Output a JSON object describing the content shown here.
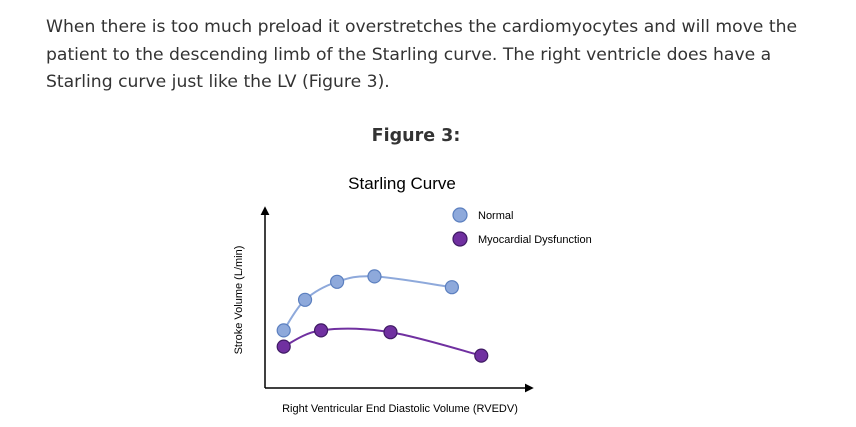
{
  "paragraph": "When there is too much preload it overstretches the cardiomyocytes and will move the patient to the descending limb of the Starling curve. The right ventricle does have a Starling curve just like the LV (Figure 3).",
  "figure_caption": "Figure 3:",
  "chart_data": {
    "type": "scatter",
    "title": "Starling Curve",
    "xlabel": "Right Ventricular End Diastolic Volume (RVEDV)",
    "ylabel": "Stroke Volume (L/min)",
    "grid": false,
    "legend_position": "top-right",
    "xlim": [
      0,
      100
    ],
    "ylim": [
      0,
      100
    ],
    "series": [
      {
        "name": "Normal",
        "color": "#8EA9DB",
        "edge_color": "#5B7FBF",
        "line_color": "#8EA9DB",
        "x": [
          7,
          15,
          27,
          41,
          70
        ],
        "y": [
          32,
          49,
          59,
          62,
          56
        ]
      },
      {
        "name": "Myocardial Dysfunction",
        "color": "#7030A0",
        "edge_color": "#3F1A63",
        "line_color": "#7030A0",
        "x": [
          7,
          21,
          47,
          81
        ],
        "y": [
          23,
          32,
          31,
          18
        ]
      }
    ]
  }
}
